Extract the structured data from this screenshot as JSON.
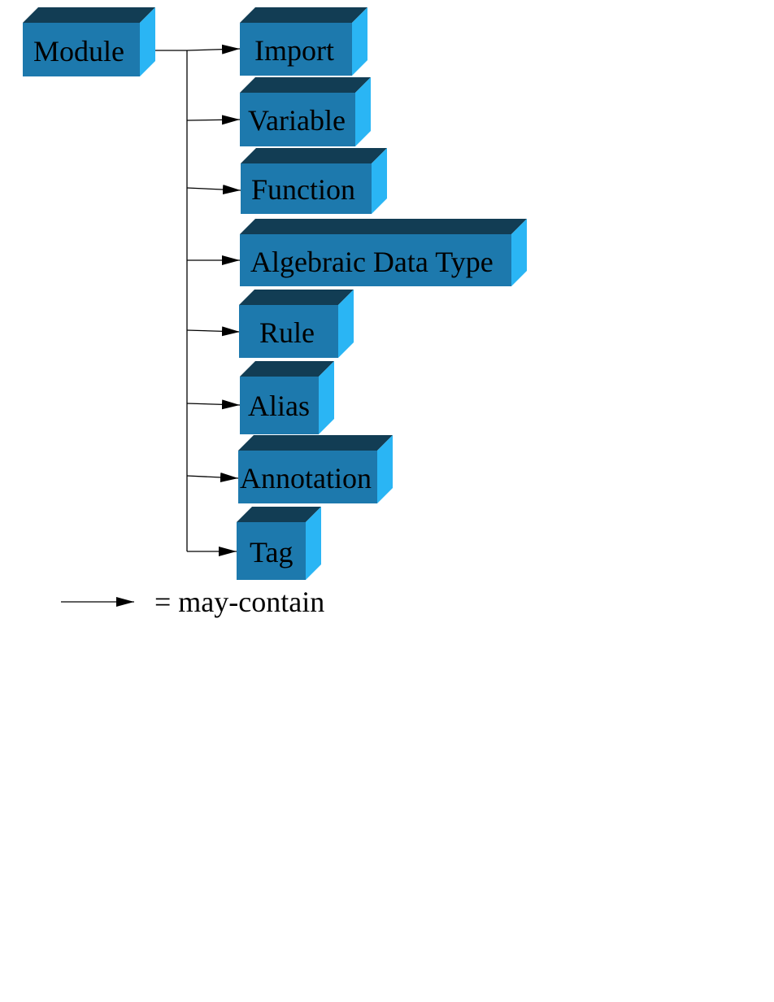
{
  "diagram": {
    "root": {
      "label": "Module"
    },
    "children": [
      {
        "label": "Import"
      },
      {
        "label": "Variable"
      },
      {
        "label": "Function"
      },
      {
        "label": "Algebraic Data Type"
      },
      {
        "label": "Rule"
      },
      {
        "label": "Alias"
      },
      {
        "label": "Annotation"
      },
      {
        "label": "Tag"
      }
    ],
    "legend": {
      "text": "= may-contain"
    },
    "colors": {
      "front": "#1d79ad",
      "top": "#123d54",
      "side": "#2ab5f4",
      "line": "#000000",
      "background": "#ffffff"
    }
  }
}
